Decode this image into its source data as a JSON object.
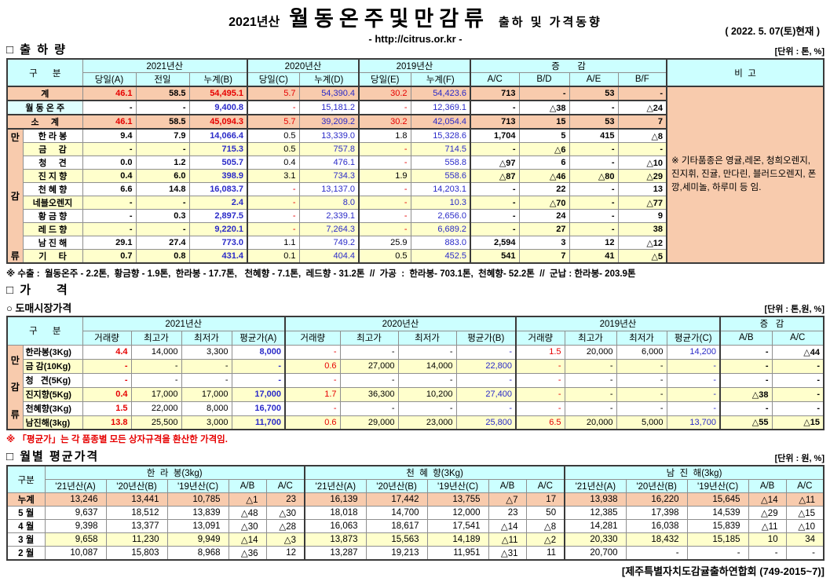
{
  "colors": {
    "head_bg": "#CCFFFF",
    "total_bg": "#F8CBAD",
    "alt_bg": "#FFFFCC",
    "sub_bg": "#DFFFFF",
    "red": "#E60000",
    "blue": "#2A2AC8"
  },
  "header": {
    "season": "2021년산",
    "title": "월동온주및만감류",
    "subtitle": "출하 및 가격동향",
    "url": "- http://citrus.or.kr -",
    "date": "( 2022. 5. 07(토)현재 )"
  },
  "shipment": {
    "section_title": "□ 출 하 량",
    "unit": "[단위 : 톤, %]",
    "head": {
      "gubun": "구      분",
      "y2021": "2021년산",
      "y2020": "2020년산",
      "y2019": "2019년산",
      "change": "증       감",
      "remark": "비  고"
    },
    "columns": [
      "당일(A)",
      "전일",
      "누계(B)",
      "당일(C)",
      "누계(D)",
      "당일(E)",
      "누계(F)",
      "A/C",
      "B/D",
      "A/E",
      "B/F"
    ],
    "side_label": "만감류",
    "rows": [
      {
        "label": "계",
        "type": "total",
        "cells": [
          "46.1",
          "58.5",
          "54,495.1",
          "5.7",
          "54,390.4",
          "30.2",
          "54,423.6",
          "713",
          "-",
          "53",
          "-"
        ]
      },
      {
        "label": "월 동 온 주",
        "type": "sub",
        "cells": [
          "-",
          "-",
          "9,400.8",
          "-",
          "15,181.2",
          "-",
          "12,369.1",
          "-",
          "△38",
          "-",
          "△24"
        ]
      },
      {
        "label": "소     계",
        "type": "total",
        "cells": [
          "46.1",
          "58.5",
          "45,094.3",
          "5.7",
          "39,209.2",
          "30.2",
          "42,054.4",
          "713",
          "15",
          "53",
          "7"
        ]
      },
      {
        "label": "한 라 봉",
        "type": "plain",
        "cells": [
          "9.4",
          "7.9",
          "14,066.4",
          "0.5",
          "13,339.0",
          "1.8",
          "15,328.6",
          "1,704",
          "5",
          "415",
          "△8"
        ]
      },
      {
        "label": "금     감",
        "type": "alt",
        "cells": [
          "-",
          "-",
          "715.3",
          "0.5",
          "757.8",
          "-",
          "714.5",
          "-",
          "△6",
          "-",
          "-"
        ]
      },
      {
        "label": "청     견",
        "type": "plain",
        "cells": [
          "0.0",
          "1.2",
          "505.7",
          "0.4",
          "476.1",
          "-",
          "558.8",
          "△97",
          "6",
          "-",
          "△10"
        ]
      },
      {
        "label": "진 지 향",
        "type": "alt",
        "cells": [
          "0.4",
          "6.0",
          "398.9",
          "3.1",
          "734.3",
          "1.9",
          "558.6",
          "△87",
          "△46",
          "△80",
          "△29"
        ]
      },
      {
        "label": "천 혜 향",
        "type": "plain",
        "cells": [
          "6.6",
          "14.8",
          "16,083.7",
          "-",
          "13,137.0",
          "-",
          "14,203.1",
          "-",
          "22",
          "-",
          "13"
        ]
      },
      {
        "label": "네블오렌지",
        "type": "alt",
        "cells": [
          "-",
          "-",
          "2.4",
          "-",
          "8.0",
          "-",
          "10.3",
          "-",
          "△70",
          "-",
          "△77"
        ]
      },
      {
        "label": "황 금 향",
        "type": "plain",
        "cells": [
          "-",
          "0.3",
          "2,897.5",
          "-",
          "2,339.1",
          "-",
          "2,656.0",
          "-",
          "24",
          "-",
          "9"
        ]
      },
      {
        "label": "레 드 향",
        "type": "alt",
        "cells": [
          "-",
          "-",
          "9,220.1",
          "-",
          "7,264.3",
          "-",
          "6,689.2",
          "-",
          "27",
          "-",
          "38"
        ]
      },
      {
        "label": "남 진 해",
        "type": "plain",
        "cells": [
          "29.1",
          "27.4",
          "773.0",
          "1.1",
          "749.2",
          "25.9",
          "883.0",
          "2,594",
          "3",
          "12",
          "△12"
        ]
      },
      {
        "label": "기     타",
        "type": "alt",
        "cells": [
          "0.7",
          "0.8",
          "431.4",
          "0.1",
          "404.4",
          "0.5",
          "452.5",
          "541",
          "7",
          "41",
          "△5"
        ]
      }
    ],
    "remark": "※ 기타품종은 영귤,레몬, 청희오렌지, 진지휘, 진귤, 만다린, 블러드오렌지, 폰깡,세미놀, 하루미 등 임.",
    "footnote": "※ 수출 :  월동온주 - 2.2톤,  황금향 - 1.9톤,  한라봉 - 17.7톤,   천혜향 - 7.1톤,  레드향 - 31.2톤  //  가공  :  한라봉- 703.1톤,  천혜향- 52.2톤  //  군납 : 한라봉- 203.9톤"
  },
  "price": {
    "section_title": "□ 가     격",
    "sub_section": "○ 도매시장가격",
    "unit": "[단위 : 톤,원, %]",
    "head": {
      "gubun": "구      분",
      "y2021": "2021년산",
      "y2020": "2020년산",
      "y2019": "2019년산",
      "change": "증   감"
    },
    "columns": [
      "거래량",
      "최고가",
      "최저가",
      "평균가(A)",
      "거래량",
      "최고가",
      "최저가",
      "평균가(B)",
      "거래량",
      "최고가",
      "최저가",
      "평균가(C)",
      "A/B",
      "A/C"
    ],
    "side_label": "만감류",
    "rows": [
      {
        "label": "한라봉(3Kg)",
        "type": "plain",
        "cells": [
          "4.4",
          "14,000",
          "3,300",
          "8,000",
          "-",
          "-",
          "-",
          "-",
          "1.5",
          "20,000",
          "6,000",
          "14,200",
          "-",
          "△44"
        ]
      },
      {
        "label": "금 감(10Kg)",
        "type": "alt",
        "cells": [
          "-",
          "-",
          "-",
          "-",
          "0.6",
          "27,000",
          "14,000",
          "22,800",
          "-",
          "-",
          "-",
          "-",
          "-",
          "-"
        ]
      },
      {
        "label": "청   견(5Kg)",
        "type": "plain",
        "cells": [
          "-",
          "-",
          "-",
          "-",
          "-",
          "-",
          "-",
          "-",
          "-",
          "-",
          "-",
          "-",
          "-",
          "-"
        ]
      },
      {
        "label": "진지향(5Kg)",
        "type": "alt",
        "cells": [
          "0.4",
          "17,000",
          "17,000",
          "17,000",
          "1.7",
          "36,300",
          "10,200",
          "27,400",
          "-",
          "-",
          "-",
          "-",
          "△38",
          "-"
        ]
      },
      {
        "label": "천혜향(3Kg)",
        "type": "plain",
        "cells": [
          "1.5",
          "22,000",
          "8,000",
          "16,700",
          "-",
          "-",
          "-",
          "-",
          "-",
          "-",
          "-",
          "-",
          "-",
          "-"
        ]
      },
      {
        "label": "남진해(3kg)",
        "type": "alt",
        "cells": [
          "13.8",
          "25,500",
          "3,000",
          "11,700",
          "0.6",
          "29,000",
          "23,000",
          "25,800",
          "6.5",
          "20,000",
          "5,000",
          "13,700",
          "△55",
          "△15"
        ]
      }
    ],
    "note": "※ 「평균가」는 각 품종별 모든 상자규격을 환산한 가격임."
  },
  "monthly": {
    "section_title": "□ 월별 평균가격",
    "unit": "[단위 : 원, %]",
    "head": {
      "gubun": "구분",
      "g1": "한  라  봉(3kg)",
      "g2": "천  혜  향(3Kg)",
      "g3": "남  진  해(3kg)"
    },
    "columns": [
      "'21년산(A)",
      "'20년산(B)",
      "'19년산(C)",
      "A/B",
      "A/C"
    ],
    "rows": [
      {
        "label": "누계",
        "type": "total",
        "cells": [
          "13,246",
          "13,441",
          "10,785",
          "△1",
          "23",
          "16,139",
          "17,442",
          "13,755",
          "△7",
          "17",
          "13,938",
          "16,220",
          "15,645",
          "△14",
          "△11"
        ]
      },
      {
        "label": "5 월",
        "type": "plain",
        "cells": [
          "9,637",
          "18,512",
          "13,839",
          "△48",
          "△30",
          "18,018",
          "14,700",
          "12,000",
          "23",
          "50",
          "12,385",
          "17,398",
          "14,539",
          "△29",
          "△15"
        ]
      },
      {
        "label": "4 월",
        "type": "plain",
        "cells": [
          "9,398",
          "13,377",
          "13,091",
          "△30",
          "△28",
          "16,063",
          "18,617",
          "17,541",
          "△14",
          "△8",
          "14,281",
          "16,038",
          "15,839",
          "△11",
          "△10"
        ]
      },
      {
        "label": "3 월",
        "type": "hl",
        "cells": [
          "9,658",
          "11,230",
          "9,949",
          "△14",
          "△3",
          "13,873",
          "15,563",
          "14,189",
          "△11",
          "△2",
          "20,330",
          "18,432",
          "15,185",
          "10",
          "34"
        ]
      },
      {
        "label": "2 월",
        "type": "plain",
        "cells": [
          "10,087",
          "15,803",
          "8,968",
          "△36",
          "12",
          "13,287",
          "19,213",
          "11,951",
          "△31",
          "11",
          "20,700",
          "-",
          "-",
          "-",
          "-"
        ]
      }
    ]
  },
  "footer": "[제주특별자치도감귤출하연합회 (749-2015~7)]"
}
